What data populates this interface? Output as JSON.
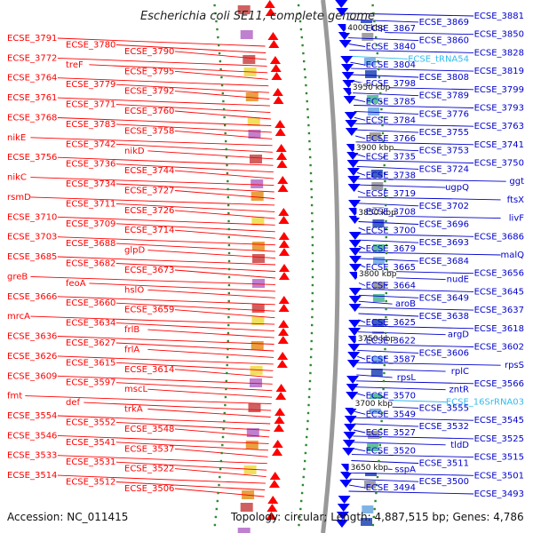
{
  "title": "Escherichia coli SE11, complete genome",
  "accession": "Accession: NC_011415",
  "summary": "Topology: circular; Length: 4,887,515 bp; Genes: 4,786",
  "colors": {
    "left_label": "#ff0000",
    "right_label": "#0000cc",
    "rna_label": "#33bbee",
    "backbone": "#999999",
    "forward_arrow": "#ff0000",
    "reverse_arrow": "#0000ff",
    "tick": "#2e8b2e"
  },
  "kbp_marks": [
    "4000 kbp",
    "3950 kbp",
    "3900 kbp",
    "3850 kbp",
    "3800 kbp",
    "3750 kbp",
    "3700 kbp",
    "3650 kbp"
  ],
  "left_labels": [
    "ECSE_3791",
    "ECSE_3780",
    "ECSE_3790",
    "ECSE_3772",
    "treF",
    "ECSE_3795",
    "ECSE_3764",
    "ECSE_3779",
    "ECSE_3792",
    "ECSE_3761",
    "ECSE_3771",
    "ECSE_3760",
    "ECSE_3768",
    "ECSE_3783",
    "ECSE_3758",
    "nikE",
    "ECSE_3742",
    "nikD",
    "ECSE_3756",
    "ECSE_3736",
    "ECSE_3744",
    "nikC",
    "ECSE_3734",
    "ECSE_3727",
    "rsmD",
    "ECSE_3711",
    "ECSE_3726",
    "ECSE_3710",
    "ECSE_3709",
    "ECSE_3714",
    "ECSE_3703",
    "ECSE_3688",
    "glpD",
    "ECSE_3685",
    "ECSE_3682",
    "ECSE_3673",
    "greB",
    "feoA",
    "hslO",
    "ECSE_3666",
    "ECSE_3660",
    "ECSE_3659",
    "mrcA",
    "ECSE_3634",
    "frlB",
    "ECSE_3636",
    "ECSE_3627",
    "frlA",
    "ECSE_3626",
    "ECSE_3615",
    "ECSE_3614",
    "ECSE_3609",
    "ECSE_3597",
    "mscL",
    "fmt",
    "def",
    "trkA",
    "ECSE_3554",
    "ECSE_3552",
    "ECSE_3548",
    "ECSE_3546",
    "ECSE_3541",
    "ECSE_3537",
    "ECSE_3533",
    "ECSE_3531",
    "ECSE_3522",
    "ECSE_3514",
    "ECSE_3512",
    "ECSE_3506"
  ],
  "right_labels": [
    "ECSE_3881",
    "ECSE_3869",
    "ECSE_3867",
    "ECSE_3850",
    "ECSE_3860",
    "ECSE_3840",
    "ECSE_3828",
    "ECSE_tRNA54",
    "ECSE_3804",
    "ECSE_3819",
    "ECSE_3808",
    "ECSE_3798",
    "ECSE_3799",
    "ECSE_3789",
    "ECSE_3785",
    "ECSE_3793",
    "ECSE_3776",
    "ECSE_3784",
    "ECSE_3763",
    "ECSE_3755",
    "ECSE_3766",
    "ECSE_3741",
    "ECSE_3753",
    "ECSE_3735",
    "ECSE_3750",
    "ECSE_3724",
    "ECSE_3738",
    "ggt",
    "ugpQ",
    "ECSE_3719",
    "ftsX",
    "ECSE_3702",
    "ECSE_3708",
    "livF",
    "ECSE_3696",
    "ECSE_3700",
    "ECSE_3686",
    "ECSE_3693",
    "ECSE_3679",
    "malQ",
    "ECSE_3684",
    "ECSE_3665",
    "ECSE_3656",
    "nudE",
    "ECSE_3664",
    "ECSE_3645",
    "ECSE_3649",
    "aroB",
    "ECSE_3637",
    "ECSE_3638",
    "ECSE_3625",
    "ECSE_3618",
    "argD",
    "ECSE_3622",
    "ECSE_3602",
    "ECSE_3606",
    "ECSE_3587",
    "rpsS",
    "rplC",
    "rpsL",
    "ECSE_3566",
    "zntR",
    "ECSE_3570",
    "ECSE_16SrRNA03",
    "ECSE_3555",
    "ECSE_3549",
    "ECSE_3545",
    "ECSE_3532",
    "ECSE_3527",
    "ECSE_3525",
    "tldD",
    "ECSE_3520",
    "ECSE_3515",
    "ECSE_3511",
    "sspA",
    "ECSE_3501",
    "ECSE_3500",
    "ECSE_3494",
    "ECSE_3493"
  ]
}
